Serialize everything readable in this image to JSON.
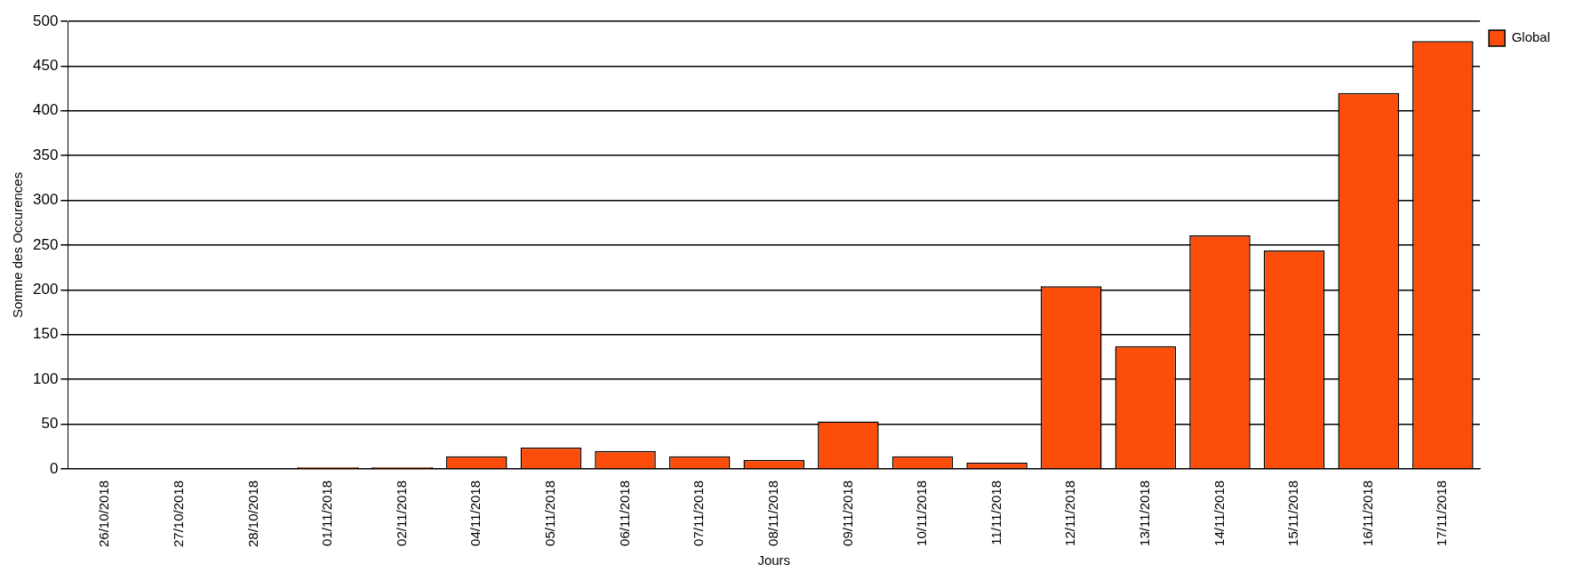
{
  "chart_data": {
    "type": "bar",
    "xlabel": "Jours",
    "ylabel": "Somme des Occurences",
    "categories": [
      "26/10/2018",
      "27/10/2018",
      "28/10/2018",
      "01/11/2018",
      "02/11/2018",
      "04/11/2018",
      "05/11/2018",
      "06/11/2018",
      "07/11/2018",
      "08/11/2018",
      "09/11/2018",
      "10/11/2018",
      "11/11/2018",
      "12/11/2018",
      "13/11/2018",
      "14/11/2018",
      "15/11/2018",
      "16/11/2018",
      "17/11/2018"
    ],
    "series": [
      {
        "name": "Global",
        "color": "#fc4e0a",
        "values": [
          0,
          0,
          0,
          2,
          2,
          14,
          24,
          20,
          14,
          10,
          53,
          14,
          7,
          204,
          137,
          261,
          244,
          420,
          478
        ]
      }
    ],
    "ylim": [
      0,
      500
    ],
    "yticks": [
      0,
      50,
      100,
      150,
      200,
      250,
      300,
      350,
      400,
      450,
      500
    ],
    "grid": "y",
    "legend": "top right"
  }
}
